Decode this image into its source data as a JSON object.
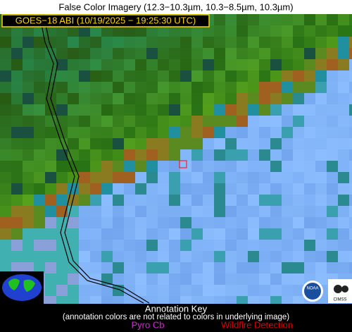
{
  "header": {
    "title": "False Color Imagery (12.3−10.3µm, 10.3−8.5µm, 10.3µm)"
  },
  "image_label": "GOES−18 ABI (10/19/2025 − 19:25:30 UTC)",
  "annotation_key": {
    "title": "Annotation Key",
    "note": "(annotation colors are not related to colors in underlying image)",
    "items": [
      "Pyro Cb",
      "Wildfire Detection"
    ]
  },
  "logos": [
    "NOAA",
    "CIMSS"
  ]
}
